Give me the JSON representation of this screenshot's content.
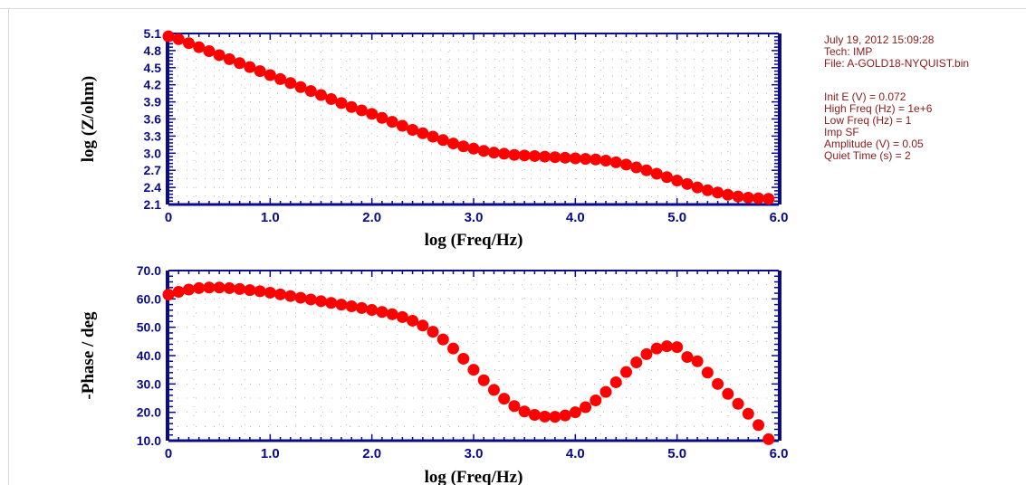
{
  "info_panel": {
    "header": [
      "July 19, 2012   15:09:28",
      "Tech: IMP",
      "File: A-GOLD18-NYQUIST.bin"
    ],
    "params": [
      "Init E (V) = 0.072",
      "High Freq (Hz) = 1e+6",
      "Low Freq (Hz) = 1",
      "Imp SF",
      "Amplitude (V) = 0.05",
      "Quiet Time (s) = 2"
    ]
  },
  "colors": {
    "axis": "#0a0a8c",
    "marker": "#ff0000",
    "label": "#000000",
    "info_text": "#8b1a1a",
    "grid": "#b8b8b8"
  },
  "chart_data": [
    {
      "type": "scatter",
      "xlabel": "log (Freq/Hz)",
      "ylabel": "log (Z/ohm)",
      "xlim": [
        0,
        6.0
      ],
      "ylim": [
        2.1,
        5.1
      ],
      "xticks": [
        "0",
        "1.0",
        "2.0",
        "3.0",
        "4.0",
        "5.0",
        "6.0"
      ],
      "yticks": [
        "5.1",
        "4.8",
        "4.5",
        "4.2",
        "3.9",
        "3.6",
        "3.3",
        "3.0",
        "2.7",
        "2.4",
        "2.1"
      ],
      "grid": true,
      "x": [
        0.0,
        0.1,
        0.2,
        0.3,
        0.4,
        0.5,
        0.6,
        0.7,
        0.8,
        0.9,
        1.0,
        1.1,
        1.2,
        1.3,
        1.4,
        1.5,
        1.6,
        1.7,
        1.8,
        1.9,
        2.0,
        2.1,
        2.2,
        2.3,
        2.4,
        2.5,
        2.6,
        2.7,
        2.8,
        2.9,
        3.0,
        3.1,
        3.2,
        3.3,
        3.4,
        3.5,
        3.6,
        3.7,
        3.8,
        3.9,
        4.0,
        4.1,
        4.2,
        4.3,
        4.4,
        4.5,
        4.6,
        4.7,
        4.8,
        4.9,
        5.0,
        5.1,
        5.2,
        5.3,
        5.4,
        5.5,
        5.6,
        5.7,
        5.8,
        5.9
      ],
      "values": [
        5.05,
        5.0,
        4.93,
        4.86,
        4.79,
        4.72,
        4.65,
        4.58,
        4.51,
        4.44,
        4.37,
        4.3,
        4.23,
        4.16,
        4.09,
        4.02,
        3.95,
        3.88,
        3.81,
        3.75,
        3.69,
        3.62,
        3.55,
        3.48,
        3.41,
        3.35,
        3.29,
        3.23,
        3.17,
        3.12,
        3.08,
        3.04,
        3.01,
        2.99,
        2.97,
        2.96,
        2.95,
        2.94,
        2.93,
        2.92,
        2.91,
        2.9,
        2.89,
        2.87,
        2.84,
        2.8,
        2.75,
        2.7,
        2.64,
        2.58,
        2.52,
        2.46,
        2.4,
        2.35,
        2.31,
        2.27,
        2.24,
        2.22,
        2.21,
        2.2
      ]
    },
    {
      "type": "scatter",
      "xlabel": "log (Freq/Hz)",
      "ylabel": "-Phase / deg",
      "xlim": [
        0,
        6.0
      ],
      "ylim": [
        10.0,
        70.0
      ],
      "xticks": [
        "0",
        "1.0",
        "2.0",
        "3.0",
        "4.0",
        "5.0",
        "6.0"
      ],
      "yticks": [
        "70.0",
        "60.0",
        "50.0",
        "40.0",
        "30.0",
        "20.0",
        "10.0"
      ],
      "grid": true,
      "x": [
        0.0,
        0.1,
        0.2,
        0.3,
        0.4,
        0.5,
        0.6,
        0.7,
        0.8,
        0.9,
        1.0,
        1.1,
        1.2,
        1.3,
        1.4,
        1.5,
        1.6,
        1.7,
        1.8,
        1.9,
        2.0,
        2.1,
        2.2,
        2.3,
        2.4,
        2.5,
        2.6,
        2.7,
        2.8,
        2.9,
        3.0,
        3.1,
        3.2,
        3.3,
        3.4,
        3.5,
        3.6,
        3.7,
        3.8,
        3.9,
        4.0,
        4.1,
        4.2,
        4.3,
        4.4,
        4.5,
        4.6,
        4.7,
        4.8,
        4.9,
        5.0,
        5.1,
        5.2,
        5.3,
        5.4,
        5.5,
        5.6,
        5.7,
        5.8,
        5.9
      ],
      "values": [
        61.5,
        62.5,
        63.3,
        63.8,
        64.0,
        64.0,
        63.8,
        63.5,
        63.1,
        62.7,
        62.2,
        61.6,
        61.0,
        60.4,
        59.8,
        59.2,
        58.6,
        58.0,
        57.4,
        56.8,
        56.1,
        55.4,
        54.6,
        53.6,
        52.3,
        50.6,
        48.4,
        45.7,
        42.5,
        38.9,
        35.0,
        31.3,
        27.9,
        24.8,
        22.2,
        20.3,
        19.1,
        18.5,
        18.4,
        18.9,
        20.0,
        21.8,
        24.2,
        27.2,
        30.6,
        34.2,
        37.6,
        40.5,
        42.5,
        43.3,
        43.0,
        39.5,
        38.0,
        34.0,
        30.0,
        26.5,
        23.0,
        19.5,
        15.5,
        10.5
      ]
    }
  ]
}
